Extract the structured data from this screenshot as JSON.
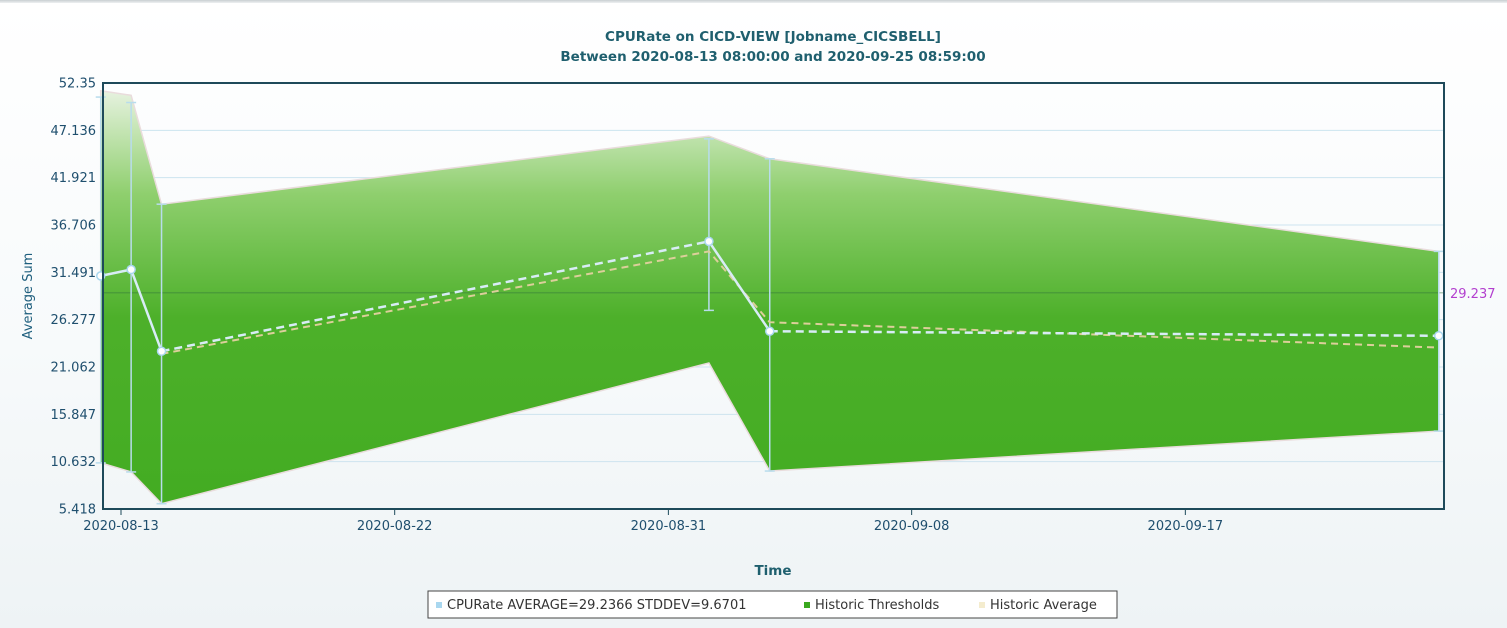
{
  "chart_data": {
    "type": "area",
    "title": "CPURate on CICD-VIEW [Jobname_CICSBELL]",
    "subtitle": "Between 2020-08-13 08:00:00 and 2020-09-25 08:59:00",
    "xlabel": "Time",
    "ylabel": "Average Sum",
    "y_ticks": [
      "52.35",
      "47.136",
      "41.921",
      "36.706",
      "31.491",
      "26.277",
      "21.062",
      "15.847",
      "10.632",
      "5.418"
    ],
    "ylim": [
      5.418,
      52.35
    ],
    "x_ticks": [
      "2020-08-13",
      "2020-08-22",
      "2020-08-31",
      "2020-09-08",
      "2020-09-17"
    ],
    "xlim": [
      "2020-08-13 08:00",
      "2020-09-25 08:59"
    ],
    "grid": true,
    "legend_position": "bottom",
    "average_line": {
      "value": 29.237,
      "label": "29.237",
      "color": "#b23fcf"
    },
    "series": [
      {
        "name": "CPURate AVERAGE=29.2366 STDDEV=9.6701",
        "color": "#a9d7ef",
        "style": "solid-dashed",
        "points": [
          {
            "x": "2020-08-12 08:00",
            "y": 31.1,
            "low": 10.5,
            "high": 50.8
          },
          {
            "x": "2020-08-13 08:00",
            "y": 31.8,
            "low": 9.5,
            "high": 50.2
          },
          {
            "x": "2020-08-14 08:00",
            "y": 22.8,
            "low": 6.0,
            "high": 39.0
          },
          {
            "x": "2020-09-01 08:00",
            "y": 34.9,
            "low": 27.3,
            "high": 46.2
          },
          {
            "x": "2020-09-03 08:00",
            "y": 25.0,
            "low": 9.6,
            "high": 44.0
          },
          {
            "x": "2020-09-25 08:00",
            "y": 24.5,
            "low": 14.0,
            "high": 33.8
          }
        ]
      },
      {
        "name": "Historic Thresholds",
        "color": "#3aa81f",
        "points": [
          {
            "x": "2020-08-12 08:00",
            "low": 10.5,
            "high": 51.5
          },
          {
            "x": "2020-08-13 08:00",
            "low": 9.5,
            "high": 51.0
          },
          {
            "x": "2020-08-14 08:00",
            "low": 6.0,
            "high": 39.0
          },
          {
            "x": "2020-09-01 08:00",
            "low": 21.5,
            "high": 46.5
          },
          {
            "x": "2020-09-03 08:00",
            "low": 9.6,
            "high": 44.0
          },
          {
            "x": "2020-09-25 08:00",
            "low": 14.0,
            "high": 33.8
          }
        ]
      },
      {
        "name": "Historic Average",
        "color": "#e9d9a6",
        "points": [
          {
            "x": "2020-08-14 08:00",
            "y": 22.5
          },
          {
            "x": "2020-09-01 08:00",
            "y": 33.8
          },
          {
            "x": "2020-09-03 08:00",
            "y": 26.0
          },
          {
            "x": "2020-09-25 08:00",
            "y": 23.2
          }
        ]
      }
    ]
  }
}
